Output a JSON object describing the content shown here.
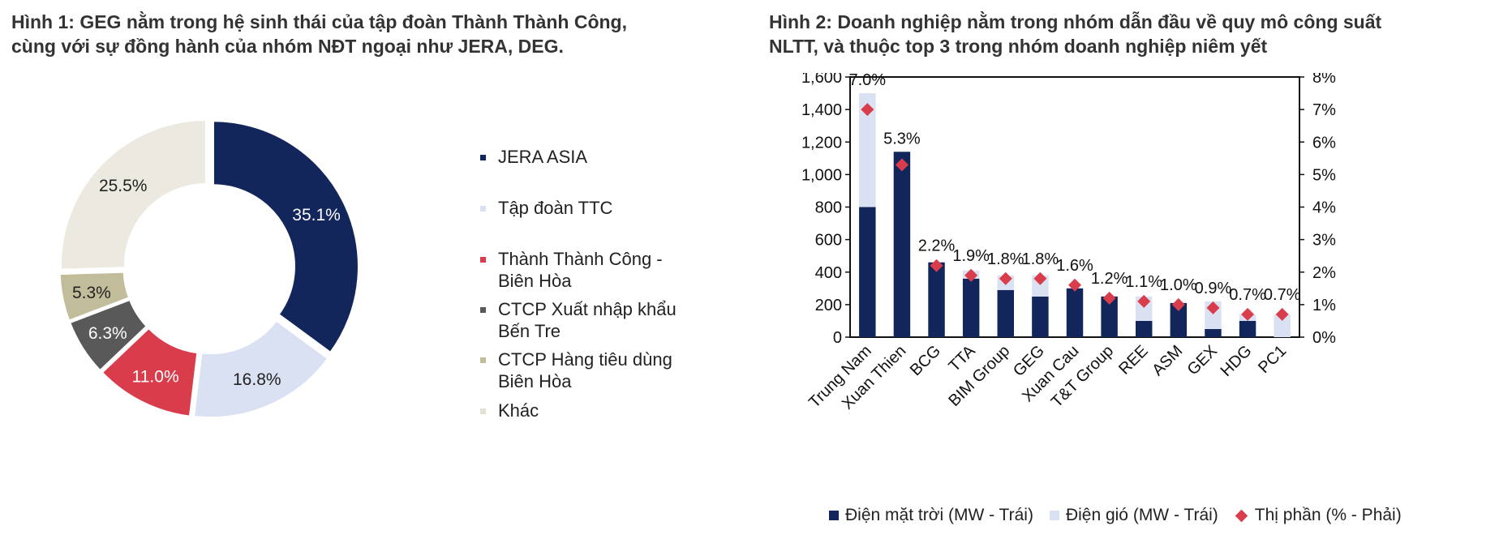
{
  "figure1": {
    "title_lines": [
      "Hình 1: GEG nằm trong hệ sinh thái của tập đoàn Thành Thành Công,",
      "cùng với sự đồng hành của nhóm NĐT ngoại như JERA, DEG."
    ]
  },
  "figure2": {
    "title_lines": [
      "Hình 2: Doanh nghiệp nằm trong nhóm dẫn đầu về quy mô công suất",
      "NLTT, và thuộc top 3 trong nhóm doanh nghiệp niêm yết"
    ]
  },
  "chart_data": [
    {
      "type": "pie",
      "style": "donut",
      "slices": [
        {
          "label": "JERA ASIA",
          "value": 35.1,
          "value_label": "35.1%",
          "color": "#13265c"
        },
        {
          "label": "Tập đoàn TTC",
          "value": 16.8,
          "value_label": "16.8%",
          "color": "#dae1f2"
        },
        {
          "label": "Thành Thành Công - Biên Hòa",
          "value": 11.0,
          "value_label": "11.0%",
          "color": "#d93d4c"
        },
        {
          "label": "CTCP Xuất nhập khẩu Bến Tre",
          "value": 6.3,
          "value_label": "6.3%",
          "color": "#595959"
        },
        {
          "label": "CTCP Hàng tiêu dùng Biên Hòa",
          "value": 5.3,
          "value_label": "5.3%",
          "color": "#c1bc9a"
        },
        {
          "label": "Khác",
          "value": 25.5,
          "value_label": "25.5%",
          "color": "#ece9e0"
        }
      ],
      "legend_placement": "right"
    },
    {
      "type": "bar",
      "stacked": true,
      "categories": [
        "Trung Nam",
        "Xuan Thien",
        "BCG",
        "TTA",
        "BIM Group",
        "GEG",
        "Xuan Cau",
        "T&T Group",
        "REE",
        "ASM",
        "GEX",
        "HDG",
        "PC1"
      ],
      "series": [
        {
          "name": "Điện mặt trời (MW - Trái)",
          "axis": "left",
          "color": "#13265c",
          "values": [
            800,
            1140,
            460,
            360,
            290,
            250,
            300,
            250,
            100,
            210,
            50,
            100,
            0
          ]
        },
        {
          "name": "Điện gió (MW - Trái)",
          "axis": "left",
          "color": "#dae1f2",
          "values": [
            700,
            0,
            0,
            50,
            90,
            130,
            0,
            0,
            150,
            0,
            170,
            40,
            140
          ]
        },
        {
          "name": "Thị phần (% - Phải)",
          "axis": "right",
          "type": "scatter",
          "marker": "diamond",
          "color": "#d93d4c",
          "values": [
            7.0,
            5.3,
            2.2,
            1.9,
            1.8,
            1.8,
            1.6,
            1.2,
            1.1,
            1.0,
            0.9,
            0.7,
            0.7
          ],
          "labels": [
            "7.0%",
            "5.3%",
            "2.2%",
            "1.9%",
            "1.8%",
            "1.8%",
            "1.6%",
            "1.2%",
            "1.1%",
            "1.0%",
            "0.9%",
            "0.7%",
            "0.7%"
          ]
        }
      ],
      "y_left": {
        "range": [
          0,
          1600
        ],
        "ticks": [
          "0",
          "200",
          "400",
          "600",
          "800",
          "1,000",
          "1,200",
          "1,400",
          "1,600"
        ]
      },
      "y_right": {
        "range": [
          0,
          8
        ],
        "ticks": [
          "0%",
          "1%",
          "2%",
          "3%",
          "4%",
          "5%",
          "6%",
          "7%",
          "8%"
        ]
      },
      "grid": false,
      "legend_placement": "bottom"
    }
  ]
}
